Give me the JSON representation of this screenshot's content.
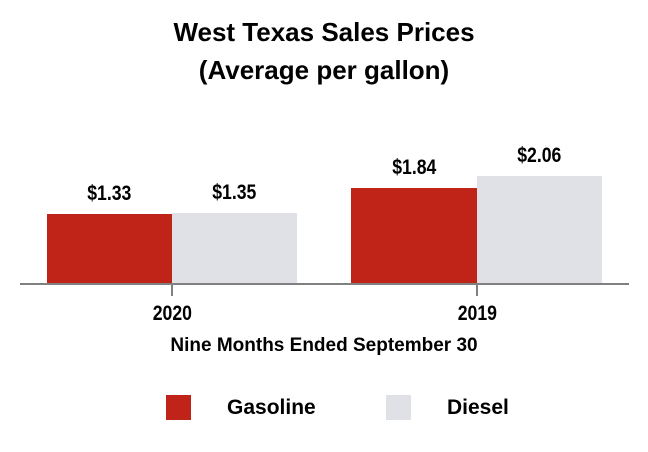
{
  "title": {
    "line1": "West Texas Sales Prices",
    "line2": "(Average per gallon)"
  },
  "chart_data": {
    "type": "bar",
    "title": "West Texas Sales Prices (Average per gallon)",
    "categories": [
      "2020",
      "2019"
    ],
    "series": [
      {
        "name": "Gasoline",
        "color": "#c02318",
        "values": [
          1.33,
          1.84
        ],
        "display_values": [
          "$1.33",
          "$1.84"
        ]
      },
      {
        "name": "Diesel",
        "color": "#dfe1e6",
        "values": [
          1.35,
          2.06
        ],
        "display_values": [
          "$1.35",
          "$2.06"
        ]
      }
    ],
    "xlabel": "Nine Months Ended September 30",
    "ylabel": "",
    "ylim": [
      0,
      2.3
    ],
    "grid": false,
    "legend_position": "bottom",
    "axis_color": "#808080",
    "value_prefix": "$"
  },
  "legend": {
    "items": [
      {
        "label": "Gasoline",
        "color": "#c02318"
      },
      {
        "label": "Diesel",
        "color": "#dfe1e6"
      }
    ]
  }
}
